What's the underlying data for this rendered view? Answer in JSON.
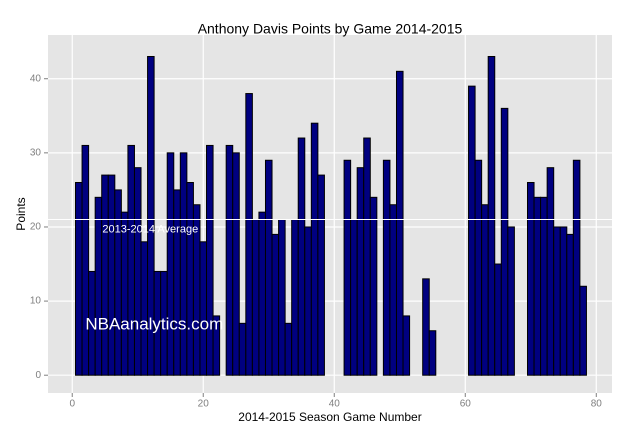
{
  "chart_data": {
    "type": "bar",
    "title": "Anthony Davis Points by Game 2014-2015",
    "x_label": "2014-2015 Season Game Number",
    "y_label": "Points",
    "x": [
      1,
      2,
      3,
      4,
      5,
      6,
      7,
      8,
      9,
      10,
      11,
      12,
      13,
      14,
      15,
      16,
      17,
      18,
      19,
      20,
      21,
      22,
      23,
      24,
      25,
      26,
      27,
      28,
      29,
      30,
      31,
      32,
      33,
      34,
      35,
      36,
      37,
      38,
      39,
      40,
      41,
      42,
      43,
      44,
      45,
      46,
      47,
      48,
      49,
      50,
      51,
      52,
      53,
      54,
      55,
      56,
      57,
      58,
      59,
      60,
      61,
      62,
      63,
      64,
      65,
      66,
      67,
      68,
      69,
      70,
      71,
      72,
      73,
      74,
      75,
      76,
      77,
      78
    ],
    "values": [
      26,
      31,
      14,
      24,
      27,
      27,
      25,
      22,
      31,
      28,
      18,
      43,
      14,
      14,
      30,
      25,
      30,
      26,
      23,
      18,
      31,
      8,
      null,
      31,
      30,
      7,
      38,
      21,
      22,
      29,
      19,
      21,
      7,
      21,
      32,
      20,
      34,
      27,
      null,
      null,
      null,
      29,
      21,
      28,
      32,
      24,
      null,
      29,
      23,
      41,
      8,
      null,
      null,
      13,
      6,
      null,
      null,
      null,
      null,
      null,
      39,
      29,
      23,
      43,
      15,
      36,
      20,
      null,
      null,
      26,
      24,
      24,
      28,
      20,
      20,
      19,
      29,
      12
    ],
    "color": "#000080",
    "xlim": [
      -3.7,
      82.4
    ],
    "ylim": [
      -2.4,
      45.9
    ],
    "xticks": [
      0,
      20,
      40,
      60,
      80
    ],
    "yticks": [
      0,
      10,
      20,
      30,
      40
    ],
    "grid": true,
    "reference_line": {
      "value": 21,
      "label": "2013-2014 Average"
    },
    "watermark": "NBAanalytics.com"
  }
}
